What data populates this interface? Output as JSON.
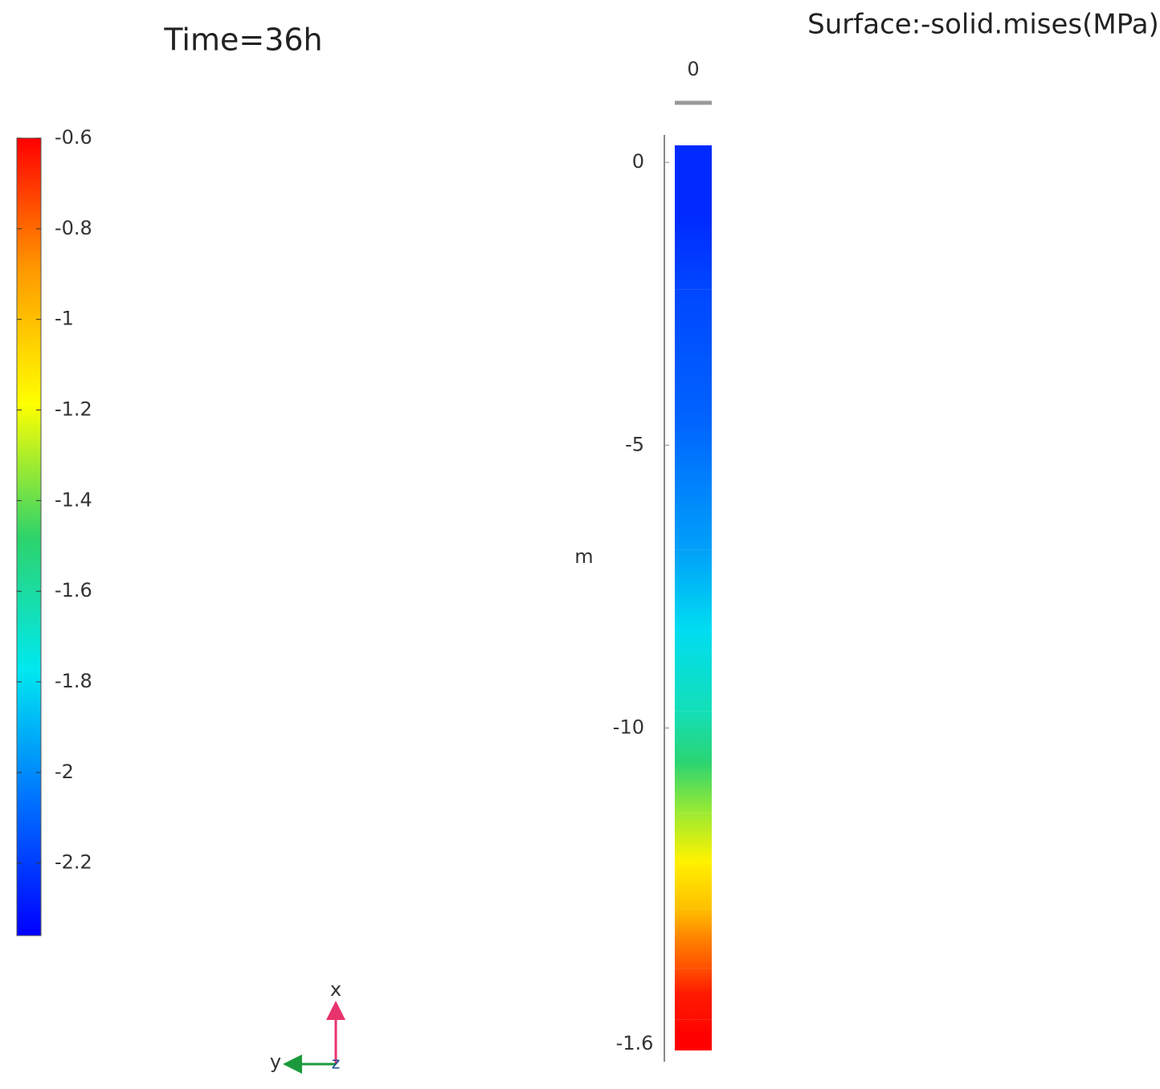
{
  "chart_data": {
    "type": "surface-column",
    "title": "Time=36h",
    "subtitle": "Surface:-solid.mises(MPa)",
    "y_label": "m",
    "ylim": [
      -15.7,
      0.3
    ],
    "yticks": [
      0,
      -5,
      -10
    ],
    "bottom_label": "-1.6",
    "xticks": [
      0
    ],
    "series": [
      {
        "x": [
          0.3,
          -4.8,
          -8.9,
          -10.5,
          -12.5,
          -13.9,
          -14.6,
          -15.7
        ],
        "values": [
          -2.25,
          -2.1,
          -1.8,
          -1.5,
          -1.15,
          -0.85,
          -0.65,
          -0.6
        ]
      }
    ],
    "clim": [
      -2.36,
      -0.6
    ],
    "cticks": [
      -0.6,
      -0.8,
      -1,
      -1.2,
      -1.4,
      -1.6,
      -1.8,
      -2,
      -2.2
    ],
    "colormap": [
      "#0000ff",
      "#0070ff",
      "#00e8f0",
      "#2ed36a",
      "#ffff00",
      "#ff9a00",
      "#ff0000"
    ],
    "triad": {
      "x": "x",
      "y": "y",
      "z": "z"
    }
  }
}
